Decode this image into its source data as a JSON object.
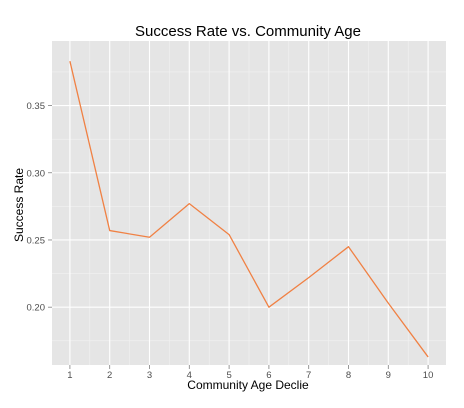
{
  "chart_data": {
    "type": "line",
    "title": "Success Rate vs. Community Age",
    "xlabel": "Community Age Declie",
    "ylabel": "Success Rate",
    "x": [
      1,
      2,
      3,
      4,
      5,
      6,
      7,
      8,
      9,
      10
    ],
    "x_tick_labels": [
      "1",
      "2",
      "3",
      "4",
      "5",
      "6",
      "7",
      "8",
      "9",
      "10"
    ],
    "y_ticks": [
      0.2,
      0.25,
      0.3,
      0.35
    ],
    "y_tick_labels": [
      "0.20",
      "0.25",
      "0.30",
      "0.35"
    ],
    "xlim": [
      0.55,
      10.45
    ],
    "ylim": [
      0.157,
      0.398
    ],
    "grid": true,
    "legend": "none",
    "series": [
      {
        "values": [
          0.383,
          0.257,
          0.252,
          0.277,
          0.254,
          0.2,
          0.222,
          0.245,
          0.203,
          0.163
        ],
        "color": "#f08144"
      }
    ],
    "colors": {
      "panel_background": "#e5e5e5",
      "grid_major": "#ffffff",
      "grid_minor": "#f2f2f2",
      "tick_text": "#4d4d4d"
    }
  }
}
